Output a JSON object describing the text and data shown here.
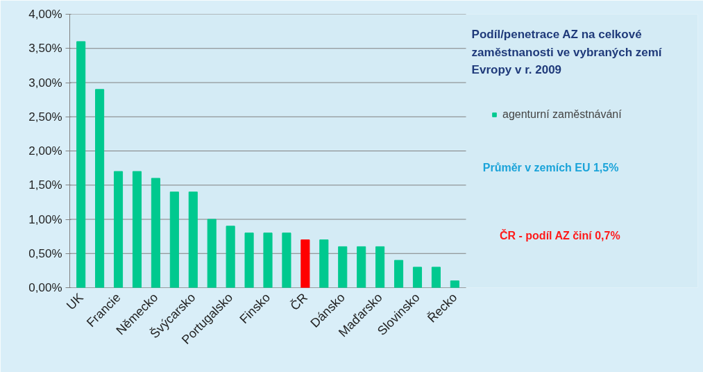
{
  "chart_data": {
    "type": "bar",
    "title": "Podíl/penetrace AZ na celkové zaměstnanosti ve vybraných zemí Evropy v r. 2009",
    "categories": [
      "UK",
      null,
      "Francie",
      null,
      "Německo",
      null,
      "Švýcarsko",
      null,
      "Portugalsko",
      null,
      "Finsko",
      null,
      "ČR",
      null,
      "Dánsko",
      null,
      "Maďarsko",
      null,
      "Slovinsko",
      null,
      "Řecko"
    ],
    "series": [
      {
        "name": "agenturní zaměstnávání",
        "color": "#00c98f",
        "values": [
          3.6,
          2.9,
          1.7,
          1.7,
          1.6,
          1.4,
          1.4,
          1.0,
          0.9,
          0.8,
          0.8,
          0.8,
          0.7,
          0.7,
          0.6,
          0.6,
          0.6,
          0.4,
          0.3,
          0.3,
          0.1
        ],
        "colors": [
          "#00c98f",
          "#00c98f",
          "#00c98f",
          "#00c98f",
          "#00c98f",
          "#00c98f",
          "#00c98f",
          "#00c98f",
          "#00c98f",
          "#00c98f",
          "#00c98f",
          "#00c98f",
          "#ff0000",
          "#00c98f",
          "#00c98f",
          "#00c98f",
          "#00c98f",
          "#00c98f",
          "#00c98f",
          "#00c98f",
          "#00c98f"
        ]
      }
    ],
    "ylim": [
      0,
      4
    ],
    "yticks": [
      {
        "value": 0,
        "label": "0,00%"
      },
      {
        "value": 0.5,
        "label": "0,50%"
      },
      {
        "value": 1,
        "label": "1,00%"
      },
      {
        "value": 1.5,
        "label": "1,50%"
      },
      {
        "value": 2,
        "label": "2,00%"
      },
      {
        "value": 2.5,
        "label": "2,50%"
      },
      {
        "value": 3,
        "label": "3,00%"
      },
      {
        "value": 3.5,
        "label": "3,50%"
      },
      {
        "value": 4,
        "label": "4,00%"
      }
    ],
    "grid": "y",
    "legend": "top right",
    "annotations": [
      "Průměr v zemích EU 1,5%",
      "ČR - podíl AZ činí 0,7%"
    ]
  }
}
